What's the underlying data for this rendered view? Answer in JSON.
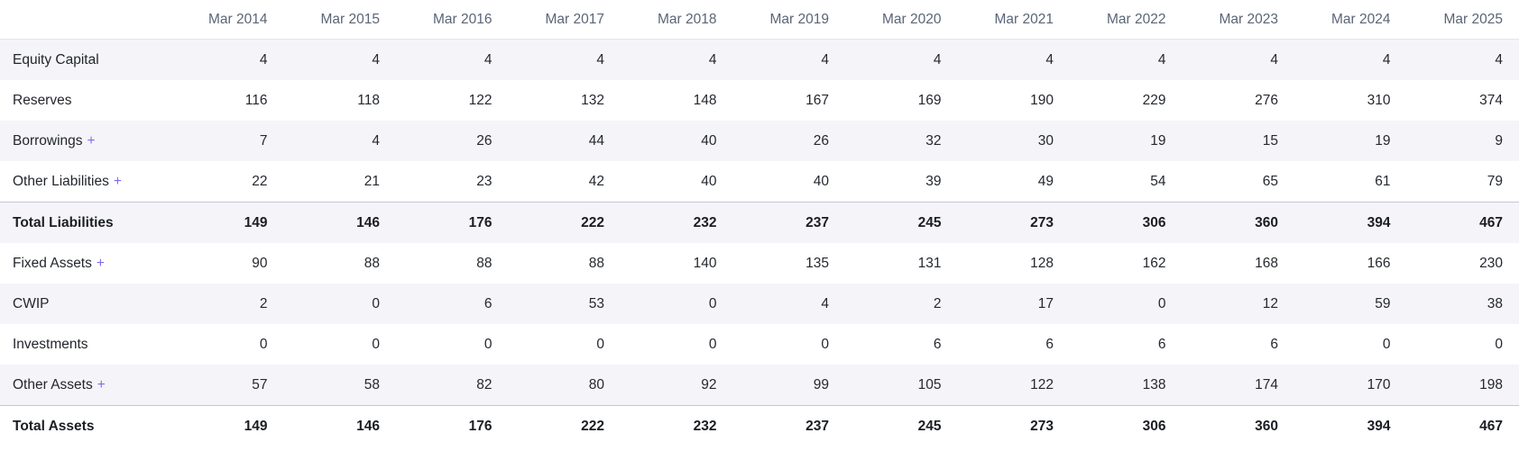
{
  "table": {
    "corner_label": "",
    "expand_symbol": "+",
    "columns": [
      "Mar 2014",
      "Mar 2015",
      "Mar 2016",
      "Mar 2017",
      "Mar 2018",
      "Mar 2019",
      "Mar 2020",
      "Mar 2021",
      "Mar 2022",
      "Mar 2023",
      "Mar 2024",
      "Mar 2025"
    ],
    "rows": [
      {
        "label": "Equity Capital",
        "expandable": false,
        "total": false,
        "values": [
          4,
          4,
          4,
          4,
          4,
          4,
          4,
          4,
          4,
          4,
          4,
          4
        ]
      },
      {
        "label": "Reserves",
        "expandable": false,
        "total": false,
        "values": [
          116,
          118,
          122,
          132,
          148,
          167,
          169,
          190,
          229,
          276,
          310,
          374
        ]
      },
      {
        "label": "Borrowings",
        "expandable": true,
        "total": false,
        "values": [
          7,
          4,
          26,
          44,
          40,
          26,
          32,
          30,
          19,
          15,
          19,
          9
        ]
      },
      {
        "label": "Other Liabilities",
        "expandable": true,
        "total": false,
        "values": [
          22,
          21,
          23,
          42,
          40,
          40,
          39,
          49,
          54,
          65,
          61,
          79
        ]
      },
      {
        "label": "Total Liabilities",
        "expandable": false,
        "total": true,
        "values": [
          149,
          146,
          176,
          222,
          232,
          237,
          245,
          273,
          306,
          360,
          394,
          467
        ]
      },
      {
        "label": "Fixed Assets",
        "expandable": true,
        "total": false,
        "values": [
          90,
          88,
          88,
          88,
          140,
          135,
          131,
          128,
          162,
          168,
          166,
          230
        ]
      },
      {
        "label": "CWIP",
        "expandable": false,
        "total": false,
        "values": [
          2,
          0,
          6,
          53,
          0,
          4,
          2,
          17,
          0,
          12,
          59,
          38
        ]
      },
      {
        "label": "Investments",
        "expandable": false,
        "total": false,
        "values": [
          0,
          0,
          0,
          0,
          0,
          0,
          6,
          6,
          6,
          6,
          0,
          0
        ]
      },
      {
        "label": "Other Assets",
        "expandable": true,
        "total": false,
        "values": [
          57,
          58,
          82,
          80,
          92,
          99,
          105,
          122,
          138,
          174,
          170,
          198
        ]
      },
      {
        "label": "Total Assets",
        "expandable": false,
        "total": true,
        "values": [
          149,
          146,
          176,
          222,
          232,
          237,
          245,
          273,
          306,
          360,
          394,
          467
        ]
      }
    ],
    "colors": {
      "accent_plus": "#7b6cf0",
      "stripe_background": "#f5f5f9",
      "header_text": "#5a6577",
      "body_text": "#25282f",
      "total_text": "#1b1e24",
      "header_border": "#e4e6ee",
      "total_row_border": "#c3c6d3"
    }
  }
}
